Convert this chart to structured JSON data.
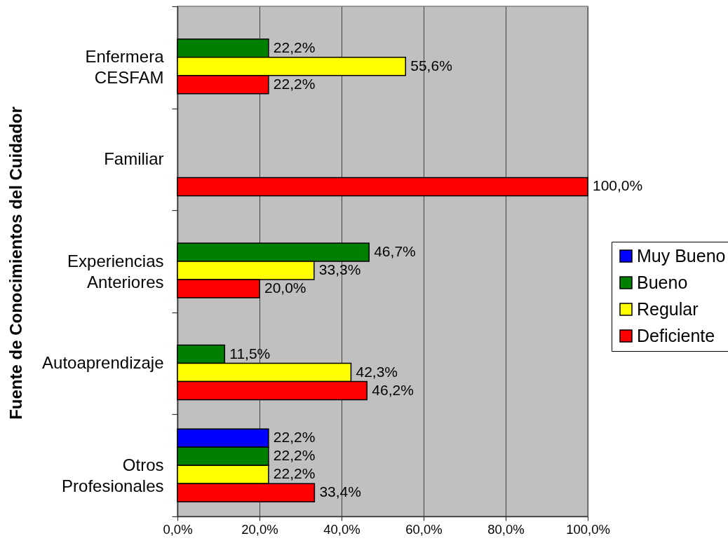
{
  "chart_data": {
    "type": "bar",
    "orientation": "horizontal",
    "ylabel": "Fuente de Conocimientos del Cuidador",
    "categories": [
      "Enfermera CESFAM",
      "Familiar",
      "Experiencias Anteriores",
      "Autoaprendizaje",
      "Otros Profesionales"
    ],
    "series": [
      {
        "name": "Muy Bueno",
        "color": "#0000ff",
        "values": [
          null,
          null,
          null,
          null,
          22.2
        ],
        "value_labels": [
          null,
          null,
          null,
          null,
          "22,2%"
        ]
      },
      {
        "name": "Bueno",
        "color": "#008000",
        "values": [
          22.2,
          null,
          46.7,
          11.5,
          22.2
        ],
        "value_labels": [
          "22,2%",
          null,
          "46,7%",
          "11,5%",
          "22,2%"
        ]
      },
      {
        "name": "Regular",
        "color": "#ffff00",
        "values": [
          55.6,
          null,
          33.3,
          42.3,
          22.2
        ],
        "value_labels": [
          "55,6%",
          null,
          "33,3%",
          "42,3%",
          "22,2%"
        ]
      },
      {
        "name": "Deficiente",
        "color": "#ff0000",
        "values": [
          22.2,
          100.0,
          20.0,
          46.2,
          33.4
        ],
        "value_labels": [
          "22,2%",
          "100,0%",
          "20,0%",
          "46,2%",
          "33,4%"
        ]
      }
    ],
    "xlim": [
      0,
      100
    ],
    "xticks": [
      {
        "value": 0,
        "label": "0,0%"
      },
      {
        "value": 20,
        "label": "20,0%"
      },
      {
        "value": 40,
        "label": "40,0%"
      },
      {
        "value": 60,
        "label": "60,0%"
      },
      {
        "value": 80,
        "label": "80,0%"
      },
      {
        "value": 100,
        "label": "100,0%"
      }
    ],
    "grid": "x",
    "legend": "right"
  }
}
